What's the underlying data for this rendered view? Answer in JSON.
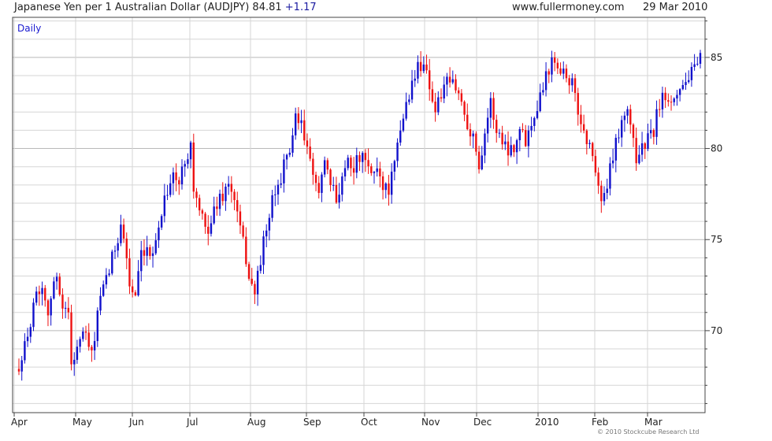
{
  "header": {
    "title": "Japanese Yen per 1 Australian Dollar (AUDJPY)",
    "last": "84.81",
    "change": "+1.17",
    "site": "www.fullermoney.com",
    "date": "29 Mar 2010"
  },
  "footer": {
    "copyright": "© 2010 Stockcube Research Ltd"
  },
  "colors": {
    "up": "#1111cc",
    "down": "#ee1111",
    "grid": "#d6d6d6",
    "frame": "#444444"
  },
  "chart_data": {
    "type": "candlestick",
    "period_label": "Daily",
    "ylim": [
      65.5,
      87.2
    ],
    "y_ticks": [
      70,
      75,
      80,
      85
    ],
    "x_ticks": [
      "Apr",
      "May",
      "Jun",
      "Jul",
      "Aug",
      "Sep",
      "Oct",
      "Nov",
      "Dec",
      "2010",
      "Feb",
      "Mar"
    ],
    "grid": true,
    "legend": "none",
    "series": [
      {
        "points": [
          [
            0,
            68.2
          ],
          [
            3,
            69.5
          ],
          [
            5,
            71.8
          ],
          [
            8,
            72.5
          ],
          [
            10,
            71.2
          ],
          [
            13,
            73.0
          ],
          [
            15,
            71.5
          ],
          [
            17,
            70.8
          ],
          [
            18,
            68.3
          ],
          [
            21,
            69.5
          ],
          [
            23,
            69.8
          ],
          [
            25,
            68.5
          ],
          [
            27,
            71.0
          ],
          [
            30,
            72.8
          ],
          [
            33,
            74.5
          ],
          [
            35,
            76.0
          ],
          [
            37,
            74.0
          ],
          [
            38,
            72.5
          ],
          [
            40,
            71.8
          ],
          [
            42,
            74.0
          ],
          [
            45,
            74.2
          ],
          [
            48,
            75.5
          ],
          [
            50,
            77.5
          ],
          [
            53,
            78.5
          ],
          [
            55,
            78.0
          ],
          [
            57,
            79.5
          ],
          [
            59,
            80.2
          ],
          [
            60,
            77.8
          ],
          [
            62,
            76.5
          ],
          [
            64,
            75.5
          ],
          [
            66,
            76.0
          ],
          [
            68,
            77.0
          ],
          [
            70,
            77.5
          ],
          [
            72,
            78.0
          ],
          [
            74,
            77.2
          ],
          [
            76,
            75.5
          ],
          [
            78,
            74.0
          ],
          [
            79,
            73.0
          ],
          [
            81,
            72.0
          ],
          [
            83,
            74.0
          ],
          [
            85,
            75.5
          ],
          [
            87,
            77.0
          ],
          [
            89,
            78.0
          ],
          [
            91,
            79.0
          ],
          [
            93,
            80.0
          ],
          [
            95,
            81.5
          ],
          [
            97,
            81.2
          ],
          [
            99,
            80.0
          ],
          [
            101,
            78.2
          ],
          [
            103,
            78.0
          ],
          [
            105,
            79.0
          ],
          [
            107,
            78.0
          ],
          [
            109,
            77.2
          ],
          [
            111,
            78.5
          ],
          [
            113,
            79.5
          ],
          [
            115,
            79.0
          ],
          [
            117,
            79.5
          ],
          [
            119,
            79.2
          ],
          [
            121,
            78.5
          ],
          [
            123,
            79.0
          ],
          [
            125,
            78.0
          ],
          [
            127,
            77.8
          ],
          [
            129,
            79.0
          ],
          [
            131,
            81.0
          ],
          [
            133,
            82.5
          ],
          [
            135,
            83.5
          ],
          [
            137,
            84.5
          ],
          [
            139,
            84.8
          ],
          [
            141,
            83.5
          ],
          [
            143,
            82.0
          ],
          [
            145,
            83.0
          ],
          [
            147,
            83.5
          ],
          [
            149,
            83.6
          ],
          [
            151,
            83.0
          ],
          [
            153,
            82.0
          ],
          [
            155,
            81.0
          ],
          [
            157,
            80.0
          ],
          [
            158,
            79.0
          ],
          [
            160,
            81.0
          ],
          [
            162,
            82.5
          ],
          [
            164,
            81.0
          ],
          [
            166,
            80.5
          ],
          [
            168,
            80.0
          ],
          [
            170,
            80.2
          ],
          [
            172,
            81.0
          ],
          [
            174,
            80.5
          ],
          [
            176,
            81.5
          ],
          [
            178,
            82.5
          ],
          [
            180,
            83.5
          ],
          [
            182,
            84.5
          ],
          [
            184,
            85.0
          ],
          [
            186,
            84.5
          ],
          [
            188,
            84.0
          ],
          [
            190,
            83.5
          ],
          [
            192,
            82.0
          ],
          [
            194,
            81.0
          ],
          [
            196,
            80.0
          ],
          [
            198,
            79.0
          ],
          [
            200,
            77.0
          ],
          [
            202,
            78.0
          ],
          [
            204,
            79.5
          ],
          [
            206,
            81.0
          ],
          [
            208,
            82.0
          ],
          [
            210,
            81.5
          ],
          [
            212,
            79.5
          ],
          [
            214,
            80.0
          ],
          [
            216,
            80.5
          ],
          [
            218,
            81.0
          ],
          [
            220,
            82.5
          ],
          [
            222,
            83.0
          ],
          [
            224,
            82.8
          ],
          [
            226,
            83.2
          ],
          [
            228,
            83.5
          ],
          [
            230,
            84.0
          ],
          [
            232,
            84.2
          ],
          [
            234,
            84.81
          ]
        ]
      }
    ],
    "n_bars": 235
  }
}
